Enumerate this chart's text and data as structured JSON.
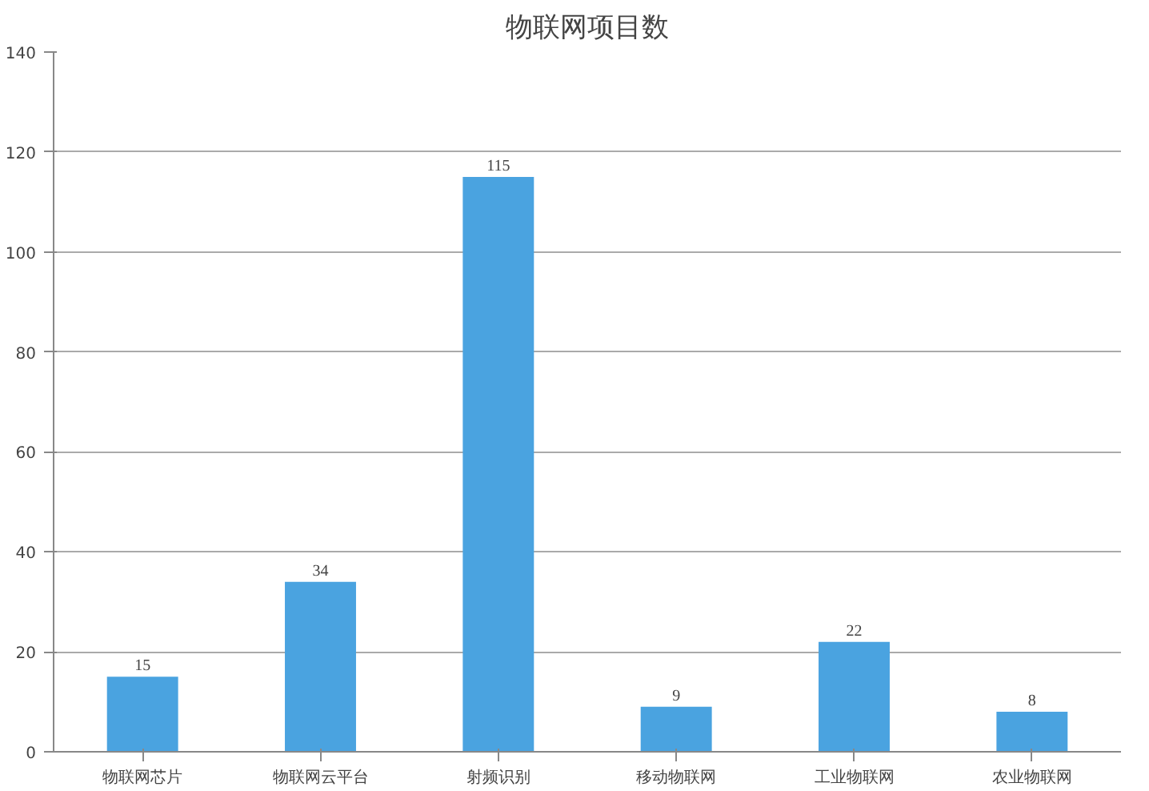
{
  "chart_data": {
    "type": "bar",
    "title": "物联网项目数",
    "categories": [
      "物联网芯片",
      "物联网云平台",
      "射频识别",
      "移动物联网",
      "工业物联网",
      "农业物联网"
    ],
    "values": [
      15,
      34,
      115,
      9,
      22,
      8
    ],
    "color": "#4aa3e0",
    "ylim": [
      0,
      140
    ],
    "yticks": [
      0,
      20,
      40,
      60,
      80,
      100,
      120,
      140
    ],
    "grid": "y",
    "data_labels": true
  }
}
